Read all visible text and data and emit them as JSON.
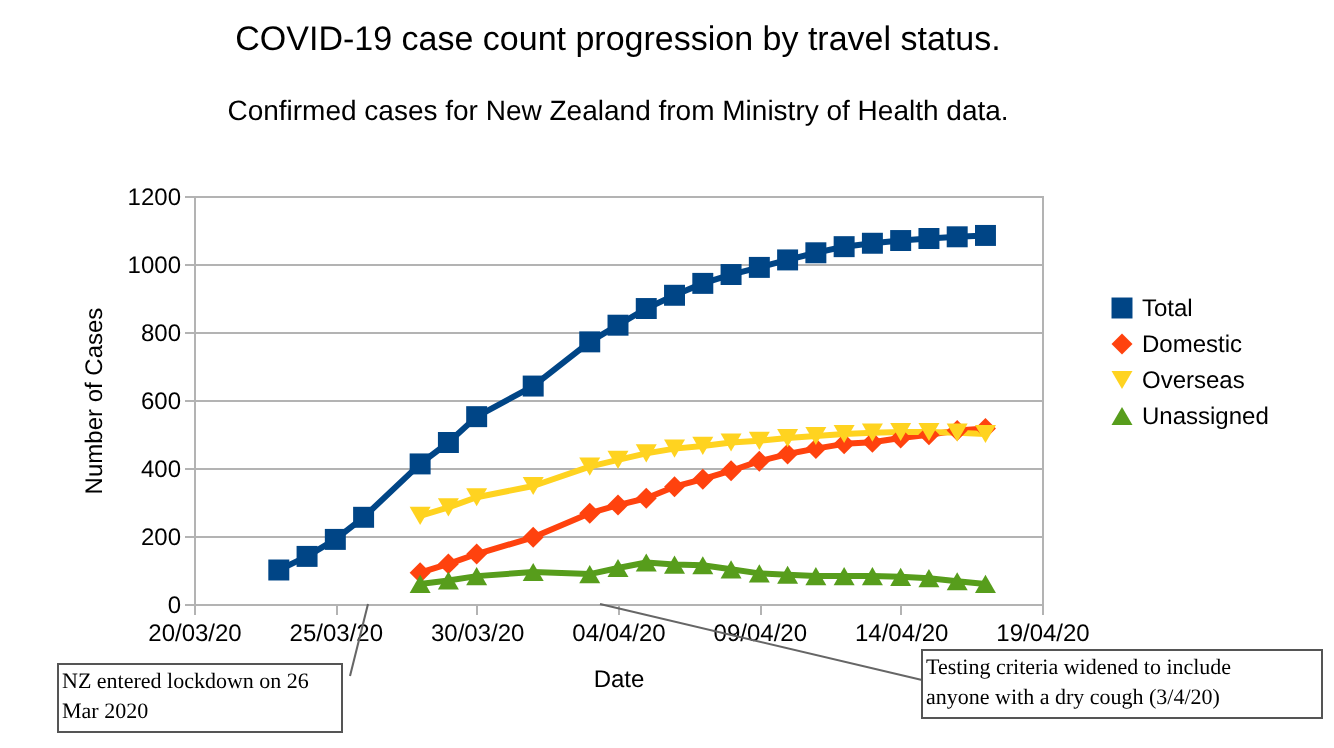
{
  "chart_data": {
    "type": "line",
    "title": "COVID-19 case count progression by travel status.",
    "subtitle": "Confirmed cases for New Zealand from Ministry of Health data.",
    "xlabel": "Date",
    "ylabel": "Number of Cases",
    "xlim": [
      "2020-03-20",
      "2020-04-19"
    ],
    "xticks": [
      {
        "value": "2020-03-20",
        "label": "20/03/20"
      },
      {
        "value": "2020-03-25",
        "label": "25/03/20"
      },
      {
        "value": "2020-03-30",
        "label": "30/03/20"
      },
      {
        "value": "2020-04-04",
        "label": "04/04/20"
      },
      {
        "value": "2020-04-09",
        "label": "09/04/20"
      },
      {
        "value": "2020-04-14",
        "label": "14/04/20"
      },
      {
        "value": "2020-04-19",
        "label": "19/04/20"
      }
    ],
    "ylim": [
      0,
      1200
    ],
    "yticks": [
      0,
      200,
      400,
      600,
      800,
      1000,
      1200
    ],
    "grid": "y",
    "legend": "right",
    "series": [
      {
        "name": "Total",
        "color": "#004586",
        "marker": "square",
        "x": [
          "2020-03-23",
          "2020-03-24",
          "2020-03-25",
          "2020-03-26",
          "2020-03-28",
          "2020-03-29",
          "2020-03-30",
          "2020-04-01",
          "2020-04-03",
          "2020-04-04",
          "2020-04-05",
          "2020-04-06",
          "2020-04-07",
          "2020-04-08",
          "2020-04-09",
          "2020-04-10",
          "2020-04-11",
          "2020-04-12",
          "2020-04-13",
          "2020-04-14",
          "2020-04-15",
          "2020-04-16",
          "2020-04-17"
        ],
        "values": [
          100,
          140,
          190,
          255,
          412,
          475,
          551,
          641,
          771,
          820,
          869,
          908,
          943,
          969,
          990,
          1012,
          1033,
          1051,
          1061,
          1069,
          1075,
          1080,
          1084
        ]
      },
      {
        "name": "Domestic",
        "color": "#ff420e",
        "marker": "diamond",
        "x": [
          "2020-03-28",
          "2020-03-29",
          "2020-03-30",
          "2020-04-01",
          "2020-04-03",
          "2020-04-04",
          "2020-04-05",
          "2020-04-06",
          "2020-04-07",
          "2020-04-08",
          "2020-04-09",
          "2020-04-10",
          "2020-04-11",
          "2020-04-12",
          "2020-04-13",
          "2020-04-14",
          "2020-04-15",
          "2020-04-16",
          "2020-04-17"
        ],
        "values": [
          92,
          118,
          147,
          196,
          267,
          291,
          311,
          345,
          367,
          392,
          420,
          441,
          457,
          471,
          476,
          488,
          498,
          510,
          516
        ]
      },
      {
        "name": "Overseas",
        "color": "#ffd320",
        "marker": "triangle-down",
        "x": [
          "2020-03-28",
          "2020-03-29",
          "2020-03-30",
          "2020-04-01",
          "2020-04-03",
          "2020-04-04",
          "2020-04-05",
          "2020-04-06",
          "2020-04-07",
          "2020-04-08",
          "2020-04-09",
          "2020-04-10",
          "2020-04-11",
          "2020-04-12",
          "2020-04-13",
          "2020-04-14",
          "2020-04-15",
          "2020-04-16",
          "2020-04-17"
        ],
        "values": [
          259,
          284,
          314,
          347,
          404,
          424,
          443,
          457,
          465,
          475,
          480,
          488,
          494,
          500,
          504,
          506,
          506,
          504,
          500
        ]
      },
      {
        "name": "Unassigned",
        "color": "#579d1c",
        "marker": "triangle-up",
        "x": [
          "2020-03-28",
          "2020-03-29",
          "2020-03-30",
          "2020-04-01",
          "2020-04-03",
          "2020-04-04",
          "2020-04-05",
          "2020-04-06",
          "2020-04-07",
          "2020-04-08",
          "2020-04-09",
          "2020-04-10",
          "2020-04-11",
          "2020-04-12",
          "2020-04-13",
          "2020-04-14",
          "2020-04-15",
          "2020-04-16",
          "2020-04-17"
        ],
        "values": [
          59,
          69,
          82,
          94,
          88,
          106,
          122,
          116,
          114,
          102,
          90,
          86,
          82,
          82,
          82,
          80,
          76,
          67,
          59
        ]
      }
    ],
    "annotations": [
      "NZ entered lockdown on 26 Mar 2020",
      "Testing criteria widened to include anyone with a dry cough (3/4/20)"
    ]
  }
}
